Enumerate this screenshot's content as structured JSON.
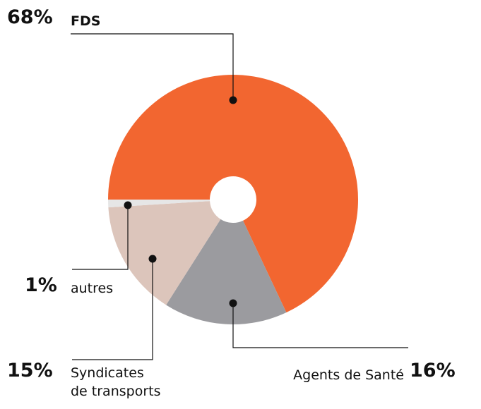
{
  "chart_data": {
    "type": "donut",
    "categories": [
      "FDS",
      "Agents de Santé",
      "Syndicates\nde transports",
      "autres"
    ],
    "values": [
      68,
      16,
      15,
      1
    ],
    "value_labels": [
      "68%",
      "16%",
      "15%",
      "1%"
    ],
    "colors": [
      "#f26630",
      "#9b9b9f",
      "#dcc5bb",
      "#e6e6e6"
    ]
  }
}
